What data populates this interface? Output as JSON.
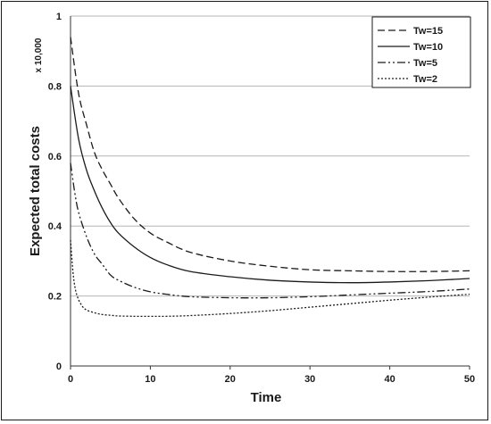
{
  "chart_data": {
    "type": "line",
    "title": "",
    "xlabel": "Time",
    "ylabel": "Expected total costs",
    "y_unit_label": "x 10,000",
    "xlim": [
      0,
      50
    ],
    "ylim": [
      0,
      1
    ],
    "x_ticks": [
      0,
      10,
      20,
      30,
      40,
      50
    ],
    "y_ticks": [
      0,
      0.2,
      0.4,
      0.6,
      0.8,
      1
    ],
    "x_tick_labels": [
      "0",
      "10",
      "20",
      "30",
      "40",
      "50"
    ],
    "y_tick_labels": [
      "0",
      "0.2",
      "0.4",
      "0.6",
      "0.8",
      "1"
    ],
    "grid": "horizontal",
    "legend_position": "top-right",
    "series": [
      {
        "name": "Tw=15",
        "dash": "8,4",
        "x": [
          0,
          1,
          2,
          3,
          4,
          5,
          6,
          8,
          10,
          12,
          15,
          20,
          25,
          30,
          35,
          40,
          45,
          50
        ],
        "values": [
          0.94,
          0.78,
          0.69,
          0.61,
          0.56,
          0.52,
          0.48,
          0.42,
          0.38,
          0.355,
          0.325,
          0.3,
          0.285,
          0.275,
          0.272,
          0.27,
          0.27,
          0.272
        ]
      },
      {
        "name": "Tw=10",
        "dash": "none",
        "x": [
          0,
          1,
          2,
          3,
          4,
          5,
          6,
          8,
          10,
          12,
          15,
          20,
          25,
          30,
          35,
          40,
          45,
          50
        ],
        "values": [
          0.8,
          0.65,
          0.56,
          0.5,
          0.45,
          0.41,
          0.38,
          0.34,
          0.31,
          0.29,
          0.27,
          0.255,
          0.245,
          0.24,
          0.238,
          0.24,
          0.244,
          0.25
        ]
      },
      {
        "name": "Tw=5",
        "dash": "9,3,2,3,2,3",
        "x": [
          0,
          0.5,
          1,
          2,
          3,
          4,
          5,
          6,
          8,
          10,
          12,
          15,
          20,
          25,
          30,
          35,
          40,
          45,
          50
        ],
        "values": [
          0.58,
          0.5,
          0.44,
          0.37,
          0.32,
          0.29,
          0.26,
          0.245,
          0.225,
          0.212,
          0.205,
          0.198,
          0.195,
          0.195,
          0.198,
          0.203,
          0.208,
          0.213,
          0.22
        ]
      },
      {
        "name": "Tw=2",
        "dash": "2,2",
        "x": [
          0,
          0.3,
          0.6,
          1,
          1.5,
          2,
          3,
          4,
          5,
          6,
          8,
          10,
          12,
          15,
          20,
          25,
          30,
          35,
          40,
          45,
          50
        ],
        "values": [
          0.36,
          0.27,
          0.22,
          0.19,
          0.17,
          0.16,
          0.152,
          0.147,
          0.145,
          0.143,
          0.142,
          0.142,
          0.142,
          0.144,
          0.15,
          0.158,
          0.168,
          0.178,
          0.188,
          0.197,
          0.205
        ]
      }
    ]
  }
}
